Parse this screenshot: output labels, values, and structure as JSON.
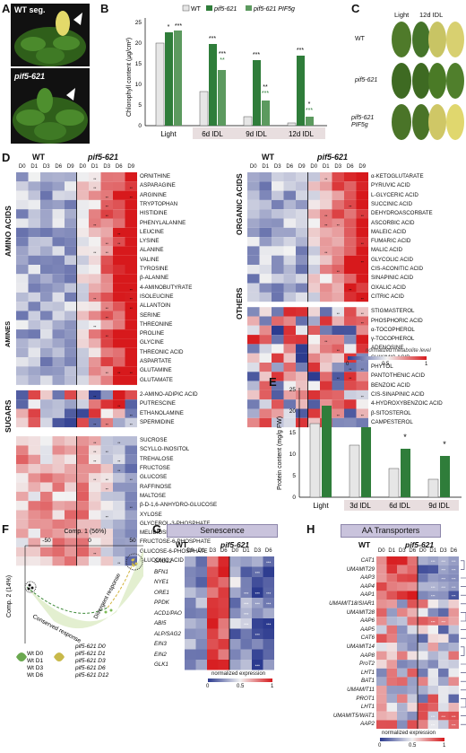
{
  "panels": {
    "A": {
      "label": "A",
      "top_title": "WT seg.",
      "bottom_title": "pif5-621"
    },
    "B": {
      "label": "B",
      "legend": [
        "WT",
        "pif5-621",
        "pif5-621 PIF5g"
      ],
      "ylabel": "Chlorophyll content (µg/cm²)",
      "yticks": [
        "0",
        "5",
        "10",
        "15",
        "20",
        "25"
      ],
      "groups": [
        "Light",
        "6d IDL",
        "9d IDL",
        "12d IDL"
      ],
      "sig": [
        {
          "group": "Light",
          "marks": [
            "*",
            "***"
          ]
        },
        {
          "group": "6d IDL",
          "marks": [
            "***",
            "***",
            "**",
            "**"
          ]
        },
        {
          "group": "9d IDL",
          "marks": [
            "***",
            "**",
            "***"
          ]
        },
        {
          "group": "12d IDL",
          "marks": [
            "***",
            "*",
            "***"
          ]
        }
      ]
    },
    "C": {
      "label": "C",
      "cols": [
        "Light",
        "12d IDL"
      ],
      "rows": [
        "WT",
        "pif5-621",
        "pif5-621 PIF5g"
      ]
    },
    "D": {
      "label": "D",
      "wt": "WT",
      "mut": "pif5-621",
      "cols_wt": [
        "D0",
        "D1",
        "D3",
        "D6",
        "D9"
      ],
      "cols_mut": [
        "D0",
        "D1",
        "D3",
        "D6",
        "D9"
      ],
      "groups": {
        "amino": {
          "name": "AMINO ACIDS",
          "items": [
            "ORNITHINE",
            "ASPARAGINE",
            "ARGININE",
            "TRYPTOPHAN",
            "HISTIDINE",
            "PHENYLALANINE",
            "LEUCINE",
            "LYSINE",
            "ALANINE",
            "VALINE",
            "TYROSINE",
            "β-ALANINE",
            "4-AMINOBUTYRATE",
            "ISOLEUCINE",
            "ALLANTOIN",
            "SERINE",
            "THREONINE",
            "PROLINE",
            "GLYCINE",
            "THREONIC ACID",
            "ASPARTATE",
            "GLUTAMINE",
            "GLUTAMATE"
          ]
        },
        "amines": {
          "name": "AMINES",
          "items": [
            "2-AMINO-ADIPIC ACID",
            "PUTRESCINE",
            "ETHANOLAMINE",
            "SPERMIDINE"
          ]
        },
        "sugars": {
          "name": "SUGARS",
          "items": [
            "SUCROSE",
            "SCYLLO-INOSITOL",
            "TREHALOSE",
            "FRUCTOSE",
            "GLUCOSE",
            "RAFFINOSE",
            "MALTOSE",
            "β-D-1,6-ANHYDRO-GLUCOSE",
            "XYLOSE",
            "GLYCEROL-3-PHOSPHATE",
            "MELIBIOSE",
            "FRUCTOSE-6-PHOSPHATE",
            "GLUCOSE-6-PHOSPHATE",
            "GLUCONIC ACID"
          ]
        },
        "organic": {
          "name": "ORGANIC ACIDS",
          "items": [
            "α-KETOGLUTARATE",
            "PYRUVIC ACID",
            "L-GLYCERIC ACID",
            "SUCCINIC ACID",
            "DEHYDROASCORBATE",
            "ASCORBIC ACID",
            "MALEIC ACID",
            "FUMARIC ACID",
            "MALIC ACID",
            "GLYCOLIC ACID",
            "CIS-ACONITIC ACID",
            "SINAPINIC ACID",
            "OXALIC ACID",
            "CITRIC ACID"
          ]
        },
        "others": {
          "name": "OTHERS",
          "items": [
            "STIGMASTEROL",
            "PHOSPHORIC ACID",
            "α-TOCOPHEROL",
            "γ-TOCOPHEROL",
            "ADENOSINE",
            "SHIKIMIC ACID",
            "PHYTOL",
            "PANTOTHENIC ACID",
            "BENZOIC ACID",
            "CIS-SINAPINIC ACID",
            "4-HYDROXYBENZOIC ACID",
            "β-SITOSTEROL",
            "CAMPESTEROL"
          ]
        }
      },
      "scale": {
        "title": "normalized metabolite level",
        "ticks": [
          "0",
          "0.5",
          "1"
        ]
      }
    },
    "E": {
      "label": "E",
      "ylabel": "Protein content (mg/g FW)",
      "yticks": [
        "0",
        "5",
        "10",
        "15",
        "20",
        "25"
      ],
      "groups": [
        "Light",
        "3d IDL",
        "6d IDL",
        "9d IDL"
      ],
      "sig": [
        "*",
        "*"
      ]
    },
    "F": {
      "label": "F",
      "xlabel": "Comp. 1 (56%)",
      "ylabel": "Comp. 2 (14%)",
      "xticks": [
        "-50",
        "0",
        "50"
      ],
      "yticks": [
        "50",
        "0",
        "-50"
      ],
      "annotations": [
        "Conserved response",
        "Divergent response"
      ],
      "legend_wt": [
        "Wt D0",
        "Wt D1",
        "Wt D3",
        "Wt D6"
      ],
      "legend_mut": [
        "pif5-621 D0",
        "pif5-621 D1",
        "pif5-621 D3",
        "pif5-621 D6",
        "pif5-621 D12"
      ],
      "legend_letters": [
        "a",
        "b",
        "c",
        "d",
        "e",
        "f",
        "g",
        "h",
        "i"
      ]
    },
    "G": {
      "label": "G",
      "header": "Senescence",
      "wt": "WT",
      "mut": "pif5-621",
      "cols": [
        "D0",
        "D1",
        "D3",
        "D6",
        "D0",
        "D1",
        "D3",
        "D6"
      ],
      "genes": [
        "SAG12",
        "BFN1",
        "NYE1",
        "ORE1",
        "PPDK",
        "ACD1/PAO",
        "ABI5",
        "ALP/SAG2",
        "EIN3",
        "EIN2",
        "GLK1"
      ],
      "scale": {
        "title": "normalized expression",
        "ticks": [
          "0",
          "0.5",
          "1"
        ]
      }
    },
    "H": {
      "label": "H",
      "header": "AA Transporters",
      "wt": "WT",
      "mut": "pif5-621",
      "cols": [
        "D0",
        "D1",
        "D3",
        "D6",
        "D0",
        "D1",
        "D3",
        "D6"
      ],
      "genes": [
        "CAT1",
        "UMAMIT29",
        "AAP3",
        "AAP4",
        "AAP1",
        "UMAMIT18/SIAR1",
        "UMAMIT28",
        "AAP6",
        "AAP5",
        "CAT6",
        "UMAMIT14",
        "AAP8",
        "ProT2",
        "LHT1",
        "BAT1",
        "UMAMIT11",
        "PROT1",
        "LHT1",
        "UMAMIT5/WAT1",
        "AAP2"
      ],
      "scale": {
        "title": "normalized expression",
        "ticks": [
          "0",
          "0.5",
          "1"
        ]
      }
    }
  },
  "colors": {
    "wt_bar": "#e6e6e6",
    "mut_bar": "#2f7d3a",
    "comp_bar": "#5c9a5f",
    "heat_low": "#2b3a8f",
    "heat_mid": "#f2f2f2",
    "heat_high": "#d7191c",
    "header_box": "#c9c3dc"
  }
}
